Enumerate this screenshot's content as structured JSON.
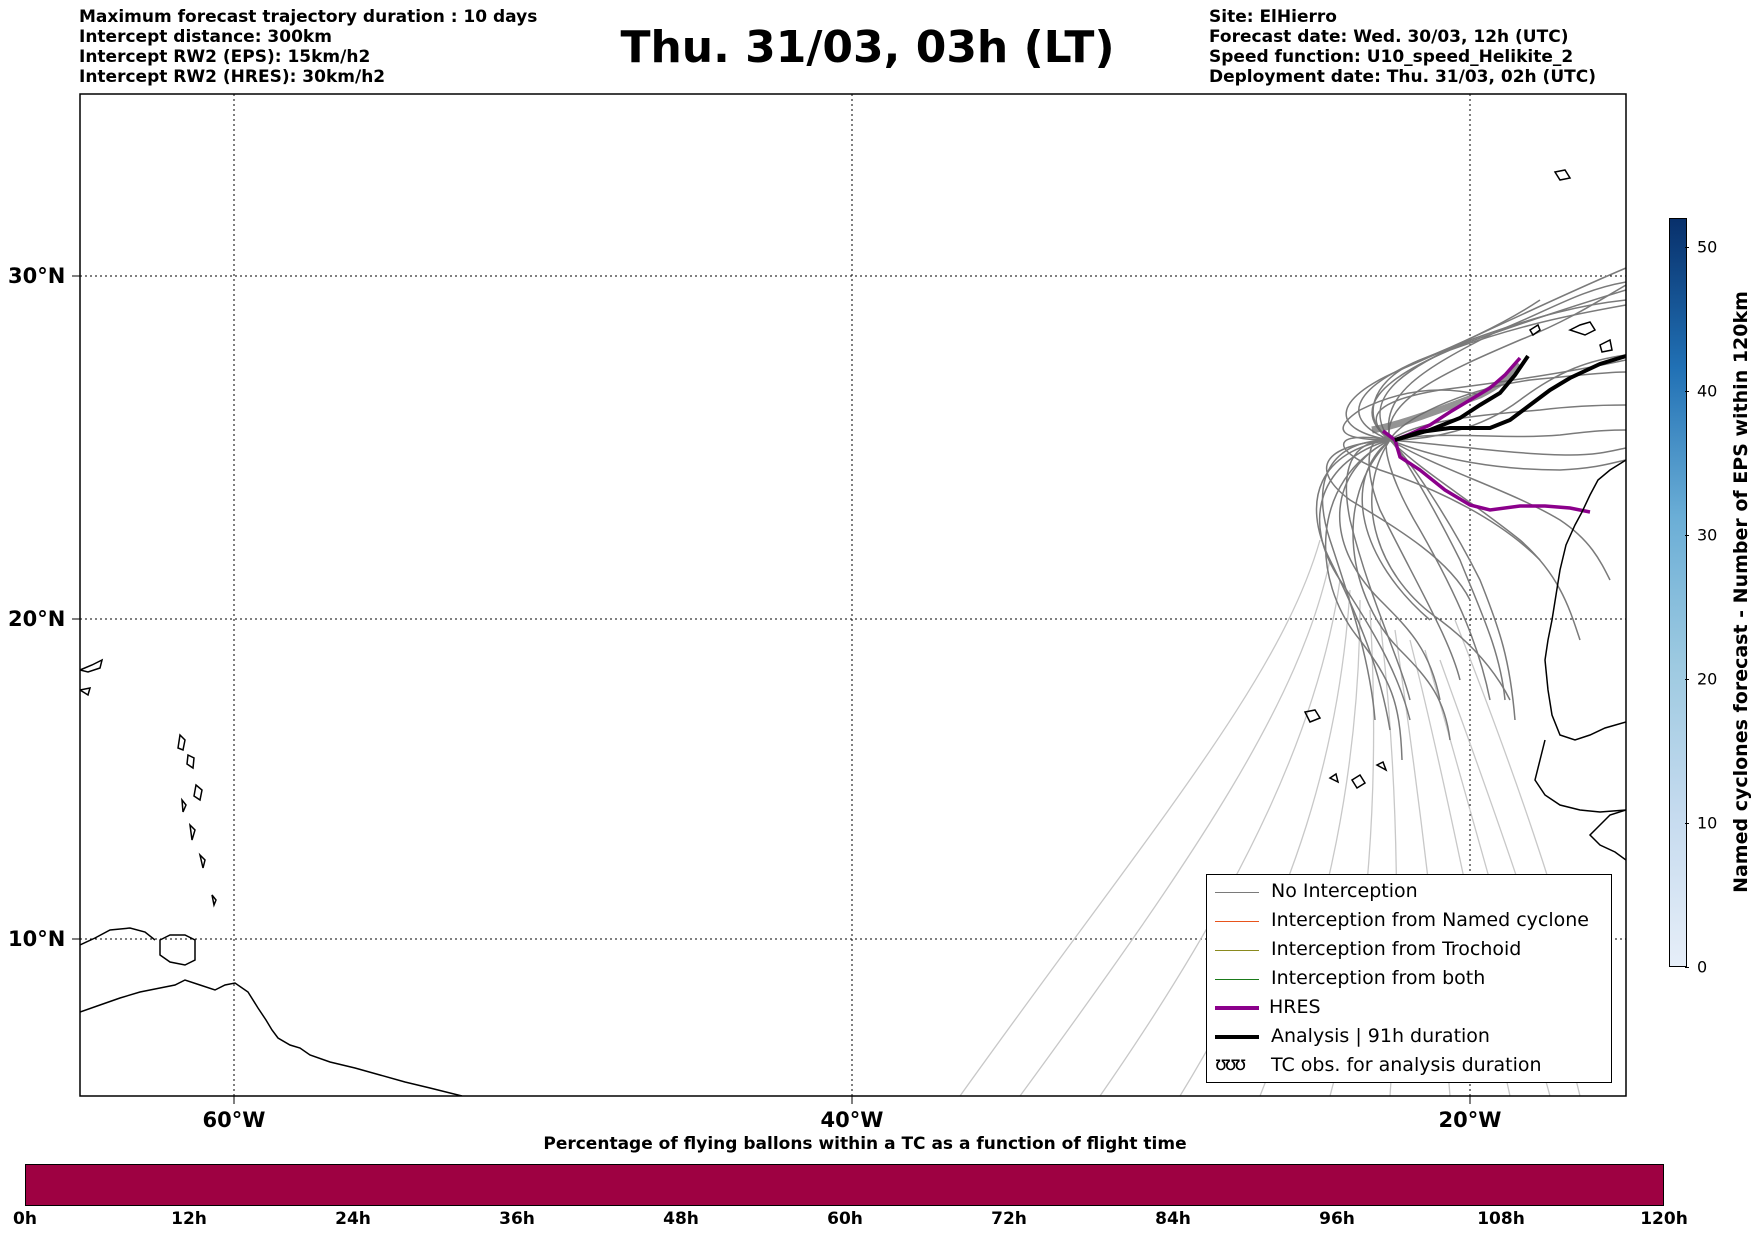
{
  "header": {
    "left_lines": [
      "Maximum forecast trajectory duration : 10 days",
      "Intercept distance: 300km",
      "Intercept RW2 (EPS):  15km/h2",
      "Intercept RW2 (HRES): 30km/h2"
    ],
    "title": "Thu. 31/03, 03h (LT)",
    "right_lines": [
      "Site: ElHierro",
      "Forecast date: Wed. 30/03, 12h (UTC)",
      "Speed function: U10_speed_Helikite_2",
      "Deployment date: Thu. 31/03, 02h (UTC)"
    ]
  },
  "map": {
    "lon_labels": [
      "60°W",
      "40°W",
      "20°W"
    ],
    "lat_labels": [
      "30°N",
      "20°N",
      "10°N"
    ],
    "colors": {
      "no_interception": "#7a7a7a",
      "named_cyclone": "#e8541c",
      "trochoid": "#8a8a1e",
      "both": "#1a7a1a",
      "hres": "#8b008b",
      "analysis": "#000000",
      "faded_tracks": "#c8c8c8"
    }
  },
  "legend": {
    "items": [
      {
        "label": "No Interception",
        "style": "thin-gray"
      },
      {
        "label": "Interception from Named cyclone",
        "style": "thin-orange"
      },
      {
        "label": "Interception from Trochoid",
        "style": "thin-olive"
      },
      {
        "label": "Interception from both",
        "style": "thin-green"
      },
      {
        "label": "HRES",
        "style": "thick-purple"
      },
      {
        "label": "Analysis | 91h duration",
        "style": "thick-black"
      },
      {
        "label": "TC obs. for analysis duration",
        "style": "cyclone-symbols",
        "symbol": "ʊʊʊ"
      }
    ]
  },
  "right_colorbar": {
    "label": "Named cyclones forecast - Number of EPS within 120km",
    "ticks": [
      "0",
      "10",
      "20",
      "30",
      "40",
      "50"
    ],
    "range": [
      0,
      52
    ]
  },
  "bottom_colorbar": {
    "title": "Percentage of flying ballons within a TC as a function of flight time",
    "ticks": [
      "0h",
      "12h",
      "24h",
      "36h",
      "48h",
      "60h",
      "72h",
      "84h",
      "96h",
      "108h",
      "120h"
    ],
    "fill_color": "#9e0142"
  }
}
